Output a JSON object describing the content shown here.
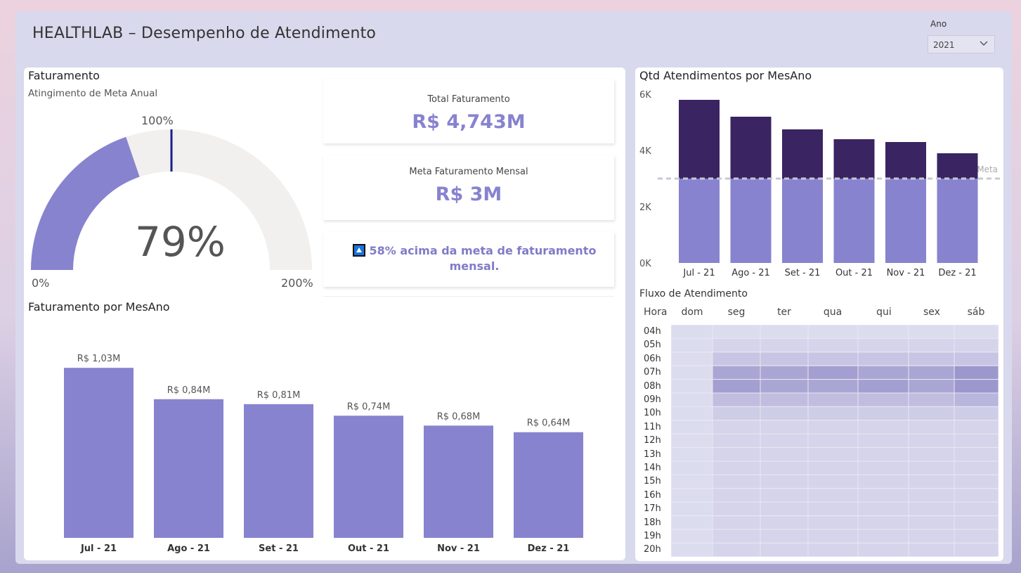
{
  "header": {
    "title": "HEALTHLAB – Desempenho de Atendimento"
  },
  "slicer": {
    "label": "Ano",
    "value": "2021"
  },
  "gauge": {
    "title": "Faturamento",
    "subtitle": "Atingimento de Meta Anual",
    "value_label": "79%",
    "value": 79,
    "min_label": "0%",
    "max_label": "200%",
    "target_label": "100%",
    "min": 0,
    "max": 200,
    "target": 100,
    "fill_color": "#8783cf",
    "track_color": "#f1f0ef",
    "target_color": "#1a1f8f"
  },
  "cards": {
    "total_label": "Total Faturamento",
    "total_value": "R$ 4,743M",
    "meta_label": "Meta Faturamento Mensal",
    "meta_value": "R$ 3M",
    "kpi_text": "58% acima da meta de faturamento mensal.",
    "kpi_icon": "triangle-up-icon"
  },
  "chart_data": [
    {
      "type": "bar",
      "title": "Faturamento por MesAno",
      "categories": [
        "Jul - 21",
        "Ago - 21",
        "Set - 21",
        "Out - 21",
        "Nov - 21",
        "Dez - 21"
      ],
      "values": [
        1.03,
        0.84,
        0.81,
        0.74,
        0.68,
        0.64
      ],
      "data_labels": [
        "R$ 1,03M",
        "R$ 0,84M",
        "R$ 0,81M",
        "R$ 0,74M",
        "R$ 0,68M",
        "R$ 0,64M"
      ],
      "ylim": [
        0,
        1.15
      ],
      "color": "#8783cf"
    },
    {
      "type": "bar",
      "title": "Qtd Atendimentos por MesAno",
      "categories": [
        "Jul - 21",
        "Ago - 21",
        "Set - 21",
        "Out - 21",
        "Nov - 21",
        "Dez - 21"
      ],
      "values": [
        5800,
        5200,
        4750,
        4400,
        4300,
        3900
      ],
      "y_ticks": [
        "0K",
        "2K",
        "4K",
        "6K"
      ],
      "ylim": [
        0,
        6000
      ],
      "reference_line": {
        "label": "Meta",
        "value": 3000
      },
      "color_below": "#8783cf",
      "color_above": "#3a2461"
    },
    {
      "type": "heatmap",
      "title": "Fluxo de Atendimento",
      "corner_label": "Hora",
      "columns": [
        "dom",
        "seg",
        "ter",
        "qua",
        "qui",
        "sex",
        "sáb"
      ],
      "rows": [
        "04h",
        "05h",
        "06h",
        "07h",
        "08h",
        "09h",
        "10h",
        "11h",
        "12h",
        "13h",
        "14h",
        "15h",
        "16h",
        "17h",
        "18h",
        "19h",
        "20h"
      ],
      "values": [
        [
          0,
          0,
          0,
          0,
          0,
          0,
          0
        ],
        [
          0,
          1,
          1,
          1,
          1,
          1,
          1
        ],
        [
          0,
          3,
          3,
          3,
          3,
          3,
          3
        ],
        [
          0,
          7,
          7,
          8,
          7,
          7,
          9
        ],
        [
          0,
          8,
          7,
          7,
          8,
          7,
          9
        ],
        [
          0,
          4,
          4,
          4,
          4,
          4,
          5
        ],
        [
          0,
          2,
          2,
          2,
          2,
          2,
          2
        ],
        [
          0,
          1,
          1,
          1,
          1,
          1,
          1
        ],
        [
          0,
          1,
          1,
          1,
          1,
          1,
          1
        ],
        [
          0,
          1,
          1,
          1,
          1,
          1,
          1
        ],
        [
          0,
          1,
          1,
          1,
          1,
          1,
          1
        ],
        [
          0,
          1,
          1,
          1,
          1,
          1,
          1
        ],
        [
          0,
          1,
          1,
          1,
          1,
          1,
          1
        ],
        [
          0,
          1,
          1,
          1,
          1,
          1,
          1
        ],
        [
          0,
          1,
          1,
          1,
          1,
          1,
          1
        ],
        [
          0,
          1,
          1,
          1,
          1,
          1,
          1
        ],
        [
          0,
          1,
          1,
          1,
          1,
          1,
          1
        ]
      ],
      "color_low": "#dcdcef",
      "color_high": "#9c97cc"
    }
  ]
}
